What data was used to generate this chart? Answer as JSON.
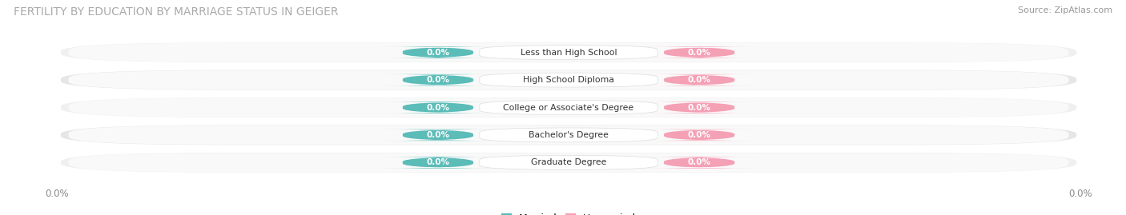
{
  "title": "FERTILITY BY EDUCATION BY MARRIAGE STATUS IN GEIGER",
  "source": "Source: ZipAtlas.com",
  "categories": [
    "Less than High School",
    "High School Diploma",
    "College or Associate's Degree",
    "Bachelor's Degree",
    "Graduate Degree"
  ],
  "married_values": [
    0.0,
    0.0,
    0.0,
    0.0,
    0.0
  ],
  "unmarried_values": [
    0.0,
    0.0,
    0.0,
    0.0,
    0.0
  ],
  "married_color": "#5bbcb8",
  "unmarried_color": "#f4a0b5",
  "title_fontsize": 10,
  "source_fontsize": 8,
  "axis_label_value": "0.0%",
  "row_bg_colors": [
    "#f0f0f0",
    "#e6e6e6",
    "#f0f0f0",
    "#e6e6e6",
    "#f0f0f0"
  ],
  "bar_bg_inner": "#f7f7f7"
}
